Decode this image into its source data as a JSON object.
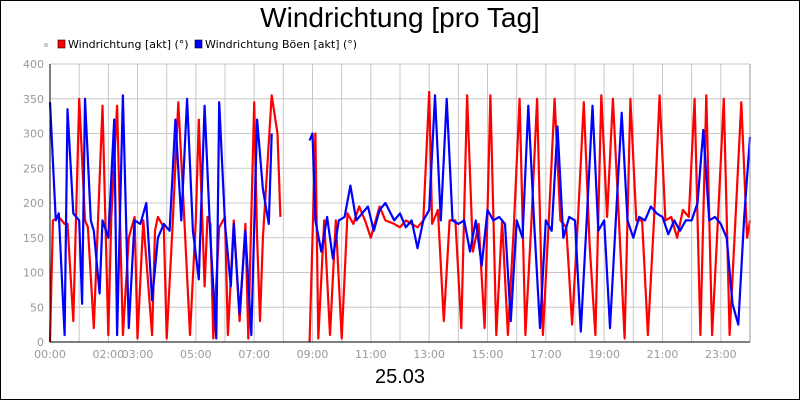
{
  "chart_data": {
    "type": "line",
    "title": "Windrichtung [pro Tag]",
    "xlabel": "25.03",
    "ylabel": "",
    "x_unit": "hours",
    "xlim": [
      0,
      24
    ],
    "ylim": [
      0,
      400
    ],
    "yticks": [
      0,
      50,
      100,
      150,
      200,
      250,
      300,
      350,
      400
    ],
    "xticks": [
      {
        "value": 0,
        "label": "00:00"
      },
      {
        "value": 2,
        "label": "02:00"
      },
      {
        "value": 3,
        "label": "03:00"
      },
      {
        "value": 5,
        "label": "05:00"
      },
      {
        "value": 7,
        "label": "07:00"
      },
      {
        "value": 9,
        "label": "09:00"
      },
      {
        "value": 11,
        "label": "11:00"
      },
      {
        "value": 13,
        "label": "13:00"
      },
      {
        "value": 15,
        "label": "15:00"
      },
      {
        "value": 17,
        "label": "17:00"
      },
      {
        "value": 19,
        "label": "19:00"
      },
      {
        "value": 21,
        "label": "21:00"
      },
      {
        "value": 23,
        "label": "23:00"
      }
    ],
    "grid": true,
    "legend_position": "top-left",
    "series": [
      {
        "name": "Windrichtung [akt] (°)",
        "color": "#ff0000",
        "segments": [
          [
            [
              0.0,
              0
            ],
            [
              0.1,
              175
            ],
            [
              0.3,
              180
            ],
            [
              0.5,
              170
            ],
            [
              0.6,
              170
            ],
            [
              0.8,
              30
            ],
            [
              1.0,
              350
            ],
            [
              1.2,
              175
            ],
            [
              1.3,
              165
            ],
            [
              1.5,
              20
            ],
            [
              1.8,
              340
            ],
            [
              2.0,
              10
            ],
            [
              2.1,
              180
            ],
            [
              2.3,
              340
            ],
            [
              2.5,
              10
            ],
            [
              2.7,
              150
            ],
            [
              2.9,
              180
            ],
            [
              3.0,
              5
            ],
            [
              3.2,
              175
            ],
            [
              3.5,
              10
            ],
            [
              3.6,
              160
            ],
            [
              3.7,
              180
            ],
            [
              3.9,
              165
            ],
            [
              4.0,
              5
            ],
            [
              4.2,
              165
            ],
            [
              4.4,
              345
            ],
            [
              4.6,
              180
            ],
            [
              4.8,
              10
            ],
            [
              5.0,
              175
            ],
            [
              5.1,
              320
            ],
            [
              5.3,
              80
            ],
            [
              5.4,
              180
            ],
            [
              5.5,
              170
            ],
            [
              5.6,
              5
            ],
            [
              5.8,
              165
            ],
            [
              6.0,
              180
            ],
            [
              6.1,
              10
            ],
            [
              6.3,
              175
            ],
            [
              6.5,
              30
            ],
            [
              6.7,
              170
            ],
            [
              6.8,
              5
            ],
            [
              6.9,
              180
            ],
            [
              7.0,
              345
            ],
            [
              7.1,
              150
            ],
            [
              7.2,
              30
            ],
            [
              7.3,
              150
            ],
            [
              7.6,
              355
            ],
            [
              7.8,
              300
            ],
            [
              7.9,
              180
            ]
          ],
          [
            [
              8.9,
              0
            ],
            [
              9.1,
              300
            ],
            [
              9.2,
              5
            ],
            [
              9.4,
              175
            ],
            [
              9.6,
              10
            ],
            [
              9.8,
              175
            ],
            [
              10.0,
              5
            ],
            [
              10.2,
              185
            ],
            [
              10.4,
              170
            ],
            [
              10.6,
              195
            ],
            [
              10.8,
              175
            ],
            [
              11.0,
              150
            ],
            [
              11.3,
              195
            ],
            [
              11.5,
              175
            ],
            [
              11.8,
              170
            ],
            [
              12.0,
              165
            ],
            [
              12.2,
              175
            ],
            [
              12.4,
              170
            ],
            [
              12.6,
              165
            ],
            [
              12.8,
              175
            ],
            [
              13.0,
              360
            ],
            [
              13.1,
              170
            ],
            [
              13.3,
              190
            ],
            [
              13.5,
              30
            ],
            [
              13.7,
              175
            ],
            [
              13.9,
              175
            ],
            [
              14.1,
              20
            ],
            [
              14.3,
              355
            ],
            [
              14.5,
              130
            ],
            [
              14.7,
              170
            ],
            [
              14.9,
              20
            ],
            [
              15.1,
              355
            ],
            [
              15.3,
              10
            ],
            [
              15.5,
              175
            ],
            [
              15.7,
              10
            ],
            [
              15.9,
              165
            ],
            [
              16.1,
              350
            ],
            [
              16.3,
              10
            ],
            [
              16.5,
              170
            ],
            [
              16.7,
              350
            ],
            [
              16.9,
              10
            ],
            [
              17.1,
              175
            ],
            [
              17.3,
              350
            ],
            [
              17.5,
              175
            ],
            [
              17.7,
              165
            ],
            [
              17.9,
              25
            ],
            [
              18.1,
              175
            ],
            [
              18.3,
              345
            ],
            [
              18.5,
              140
            ],
            [
              18.7,
              10
            ],
            [
              18.9,
              355
            ],
            [
              19.1,
              180
            ],
            [
              19.3,
              350
            ],
            [
              19.5,
              180
            ],
            [
              19.7,
              5
            ],
            [
              19.9,
              350
            ],
            [
              20.1,
              175
            ],
            [
              20.3,
              175
            ],
            [
              20.5,
              10
            ],
            [
              20.7,
              170
            ],
            [
              20.9,
              355
            ],
            [
              21.1,
              175
            ],
            [
              21.3,
              180
            ],
            [
              21.5,
              150
            ],
            [
              21.7,
              190
            ],
            [
              21.9,
              180
            ],
            [
              22.1,
              350
            ],
            [
              22.3,
              10
            ],
            [
              22.5,
              355
            ],
            [
              22.7,
              10
            ],
            [
              22.9,
              175
            ],
            [
              23.1,
              350
            ],
            [
              23.3,
              10
            ],
            [
              23.5,
              175
            ],
            [
              23.7,
              345
            ],
            [
              23.9,
              150
            ],
            [
              24.0,
              175
            ]
          ]
        ]
      },
      {
        "name": "Windrichtung Böen [akt] (°)",
        "color": "#0000ff",
        "segments": [
          [
            [
              0.0,
              345
            ],
            [
              0.2,
              175
            ],
            [
              0.3,
              185
            ],
            [
              0.5,
              10
            ],
            [
              0.6,
              335
            ],
            [
              0.8,
              185
            ],
            [
              1.0,
              175
            ],
            [
              1.1,
              55
            ],
            [
              1.2,
              350
            ],
            [
              1.4,
              175
            ],
            [
              1.5,
              160
            ],
            [
              1.7,
              70
            ],
            [
              1.8,
              175
            ],
            [
              2.0,
              150
            ],
            [
              2.2,
              320
            ],
            [
              2.3,
              10
            ],
            [
              2.5,
              355
            ],
            [
              2.7,
              20
            ],
            [
              2.9,
              175
            ],
            [
              3.1,
              170
            ],
            [
              3.3,
              200
            ],
            [
              3.5,
              60
            ],
            [
              3.7,
              150
            ],
            [
              3.9,
              170
            ],
            [
              4.1,
              160
            ],
            [
              4.3,
              320
            ],
            [
              4.5,
              175
            ],
            [
              4.7,
              350
            ],
            [
              4.9,
              160
            ],
            [
              5.1,
              90
            ],
            [
              5.3,
              340
            ],
            [
              5.5,
              150
            ],
            [
              5.7,
              5
            ],
            [
              5.8,
              345
            ],
            [
              6.0,
              170
            ],
            [
              6.2,
              80
            ],
            [
              6.3,
              170
            ],
            [
              6.5,
              40
            ],
            [
              6.7,
              160
            ],
            [
              6.9,
              10
            ],
            [
              7.1,
              320
            ],
            [
              7.3,
              220
            ],
            [
              7.5,
              170
            ],
            [
              7.6,
              300
            ]
          ],
          [
            [
              8.9,
              290
            ],
            [
              9.0,
              300
            ],
            [
              9.1,
              175
            ],
            [
              9.3,
              130
            ],
            [
              9.5,
              180
            ],
            [
              9.7,
              120
            ],
            [
              9.9,
              175
            ],
            [
              10.1,
              180
            ],
            [
              10.3,
              225
            ],
            [
              10.5,
              175
            ],
            [
              10.7,
              185
            ],
            [
              10.9,
              195
            ],
            [
              11.1,
              160
            ],
            [
              11.3,
              190
            ],
            [
              11.5,
              200
            ],
            [
              11.8,
              175
            ],
            [
              12.0,
              185
            ],
            [
              12.2,
              165
            ],
            [
              12.4,
              175
            ],
            [
              12.6,
              135
            ],
            [
              12.8,
              175
            ],
            [
              13.0,
              190
            ],
            [
              13.2,
              355
            ],
            [
              13.4,
              175
            ],
            [
              13.6,
              350
            ],
            [
              13.8,
              175
            ],
            [
              14.0,
              170
            ],
            [
              14.2,
              175
            ],
            [
              14.4,
              130
            ],
            [
              14.6,
              175
            ],
            [
              14.8,
              110
            ],
            [
              15.0,
              190
            ],
            [
              15.2,
              175
            ],
            [
              15.4,
              180
            ],
            [
              15.6,
              170
            ],
            [
              15.8,
              30
            ],
            [
              16.0,
              175
            ],
            [
              16.2,
              150
            ],
            [
              16.4,
              340
            ],
            [
              16.6,
              170
            ],
            [
              16.8,
              20
            ],
            [
              17.0,
              175
            ],
            [
              17.2,
              160
            ],
            [
              17.4,
              310
            ],
            [
              17.6,
              150
            ],
            [
              17.8,
              180
            ],
            [
              18.0,
              175
            ],
            [
              18.2,
              15
            ],
            [
              18.4,
              175
            ],
            [
              18.6,
              340
            ],
            [
              18.8,
              160
            ],
            [
              19.0,
              175
            ],
            [
              19.2,
              20
            ],
            [
              19.4,
              175
            ],
            [
              19.6,
              330
            ],
            [
              19.8,
              175
            ],
            [
              20.0,
              150
            ],
            [
              20.2,
              180
            ],
            [
              20.4,
              175
            ],
            [
              20.6,
              195
            ],
            [
              20.8,
              185
            ],
            [
              21.0,
              180
            ],
            [
              21.2,
              155
            ],
            [
              21.4,
              175
            ],
            [
              21.6,
              160
            ],
            [
              21.8,
              175
            ],
            [
              22.0,
              175
            ],
            [
              22.2,
              200
            ],
            [
              22.4,
              305
            ],
            [
              22.6,
              175
            ],
            [
              22.8,
              180
            ],
            [
              23.0,
              170
            ],
            [
              23.2,
              150
            ],
            [
              23.4,
              55
            ],
            [
              23.6,
              25
            ],
            [
              23.8,
              180
            ],
            [
              24.0,
              295
            ]
          ]
        ]
      }
    ]
  }
}
